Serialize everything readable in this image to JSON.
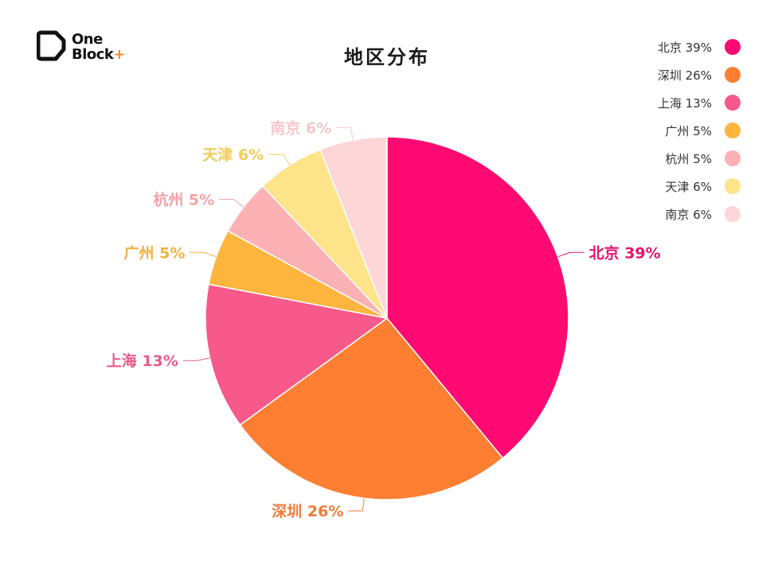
{
  "logo": {
    "line1": "One",
    "line2": "Block",
    "plus": "+"
  },
  "chart_data": {
    "type": "pie",
    "title": "地区分布",
    "legend_position": "top-right",
    "slices": [
      {
        "label": "北京",
        "value": 39,
        "display": "北京 39%",
        "color": "#ff0a72"
      },
      {
        "label": "深圳",
        "value": 26,
        "display": "深圳 26%",
        "color": "#fe7e32"
      },
      {
        "label": "上海",
        "value": 13,
        "display": "上海 13%",
        "color": "#f6598a"
      },
      {
        "label": "广州",
        "value": 5,
        "display": "广州 5%",
        "color": "#fdb53e"
      },
      {
        "label": "杭州",
        "value": 5,
        "display": "杭州 5%",
        "color": "#fcb1b5"
      },
      {
        "label": "天津",
        "value": 6,
        "display": "天津 6%",
        "color": "#fde38a"
      },
      {
        "label": "南京",
        "value": 6,
        "display": "南京 6%",
        "color": "#fdd6d7"
      }
    ],
    "label_colors": [
      "#e8136b",
      "#f27a36",
      "#e85b87",
      "#f5b13e",
      "#f4a3a8",
      "#f3cb55",
      "#f6c8c9"
    ]
  }
}
